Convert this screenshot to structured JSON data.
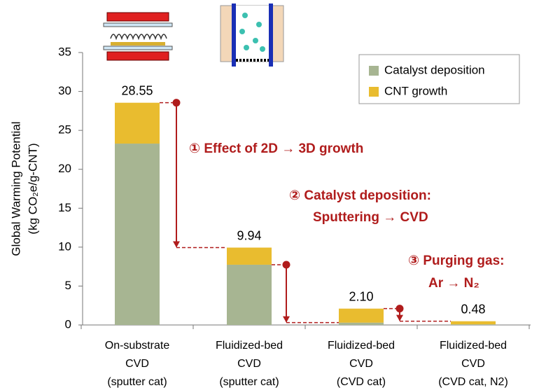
{
  "chart_data": {
    "type": "stacked_bar",
    "y_label": [
      "Global Warming Potential",
      "(kg CO₂e/g-CNT)"
    ],
    "categories": [
      [
        "On-substrate",
        "CVD",
        "(sputter cat)"
      ],
      [
        "Fluidized-bed",
        "CVD",
        "(sputter cat)"
      ],
      [
        "Fluidized-bed",
        "CVD",
        "(CVD cat)"
      ],
      [
        "Fluidized-bed",
        "CVD",
        "(CVD cat, N2)"
      ]
    ],
    "series": [
      {
        "name": "Catalyst deposition",
        "color": "#a7b592",
        "values": [
          23.3,
          7.74,
          0.3,
          0.08
        ]
      },
      {
        "name": "CNT growth",
        "color": "#e9bc2f",
        "values": [
          5.25,
          2.2,
          1.8,
          0.4
        ]
      }
    ],
    "totals": [
      28.55,
      9.94,
      2.1,
      0.48
    ],
    "total_labels": [
      "28.55",
      "9.94",
      "2.10",
      "0.48"
    ],
    "annotations": [
      [
        "① Effect of 2D → 3D growth"
      ],
      [
        "② Catalyst deposition:",
        "Sputtering → CVD"
      ],
      [
        "③ Purging gas:",
        "Ar → N₂"
      ]
    ],
    "annotation_color": "#b01c1c",
    "ylim": [
      0,
      35
    ],
    "yticks": [
      0,
      5,
      10,
      15,
      20,
      25,
      30,
      35
    ],
    "grid": false,
    "legend": "upper right"
  }
}
